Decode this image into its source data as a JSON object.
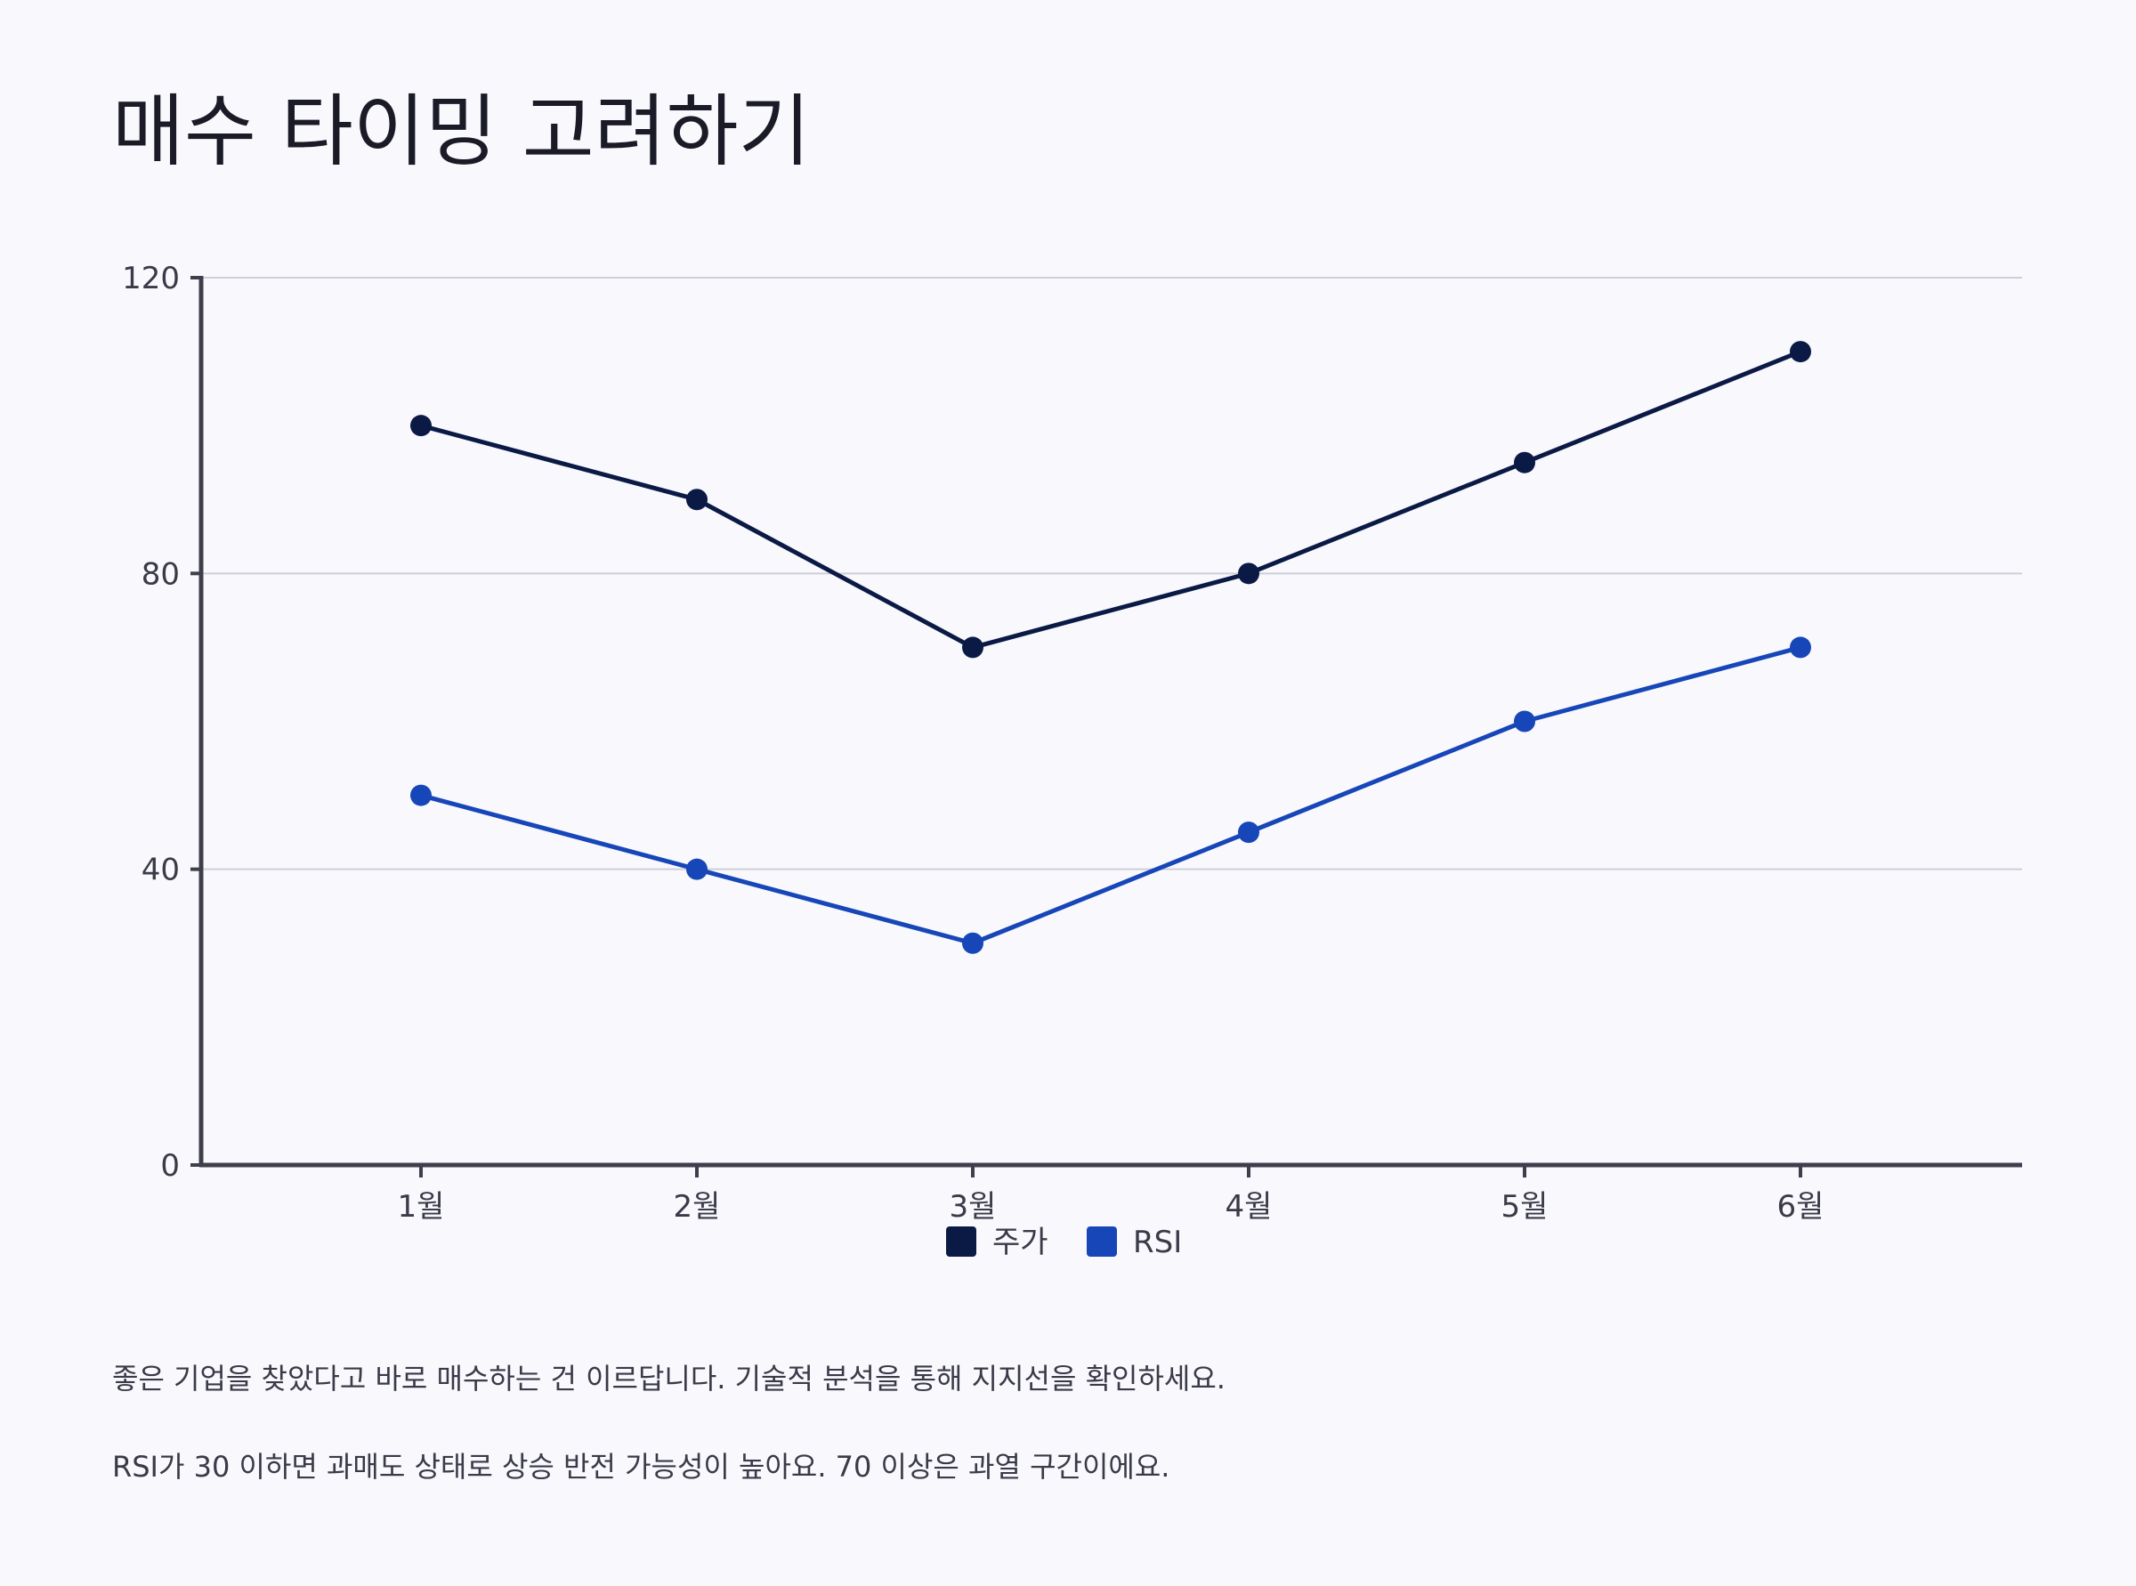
{
  "title": "매수 타이밍 고려하기",
  "notes": [
    "좋은 기업을 찾았다고 바로 매수하는 건 이르답니다. 기술적 분석을 통해 지지선을 확인하세요.",
    "RSI가 30 이하면 과매도 상태로 상승 반전 가능성이 높아요. 70 이상은 과열 구간이에요."
  ],
  "chart_data": {
    "type": "line",
    "categories": [
      "1월",
      "2월",
      "3월",
      "4월",
      "5월",
      "6월"
    ],
    "series": [
      {
        "name": "주가",
        "color": "#0b1a45",
        "values": [
          100,
          90,
          70,
          80,
          95,
          110
        ]
      },
      {
        "name": "RSI",
        "color": "#1746b8",
        "values": [
          50,
          40,
          30,
          45,
          60,
          70
        ]
      }
    ],
    "ylim": [
      0,
      120
    ],
    "yticks": [
      0,
      40,
      80,
      120
    ],
    "ytick_labels": [
      "0",
      "40",
      "80",
      "120"
    ],
    "grid": true,
    "legend_position": "bottom-center",
    "xlabel": "",
    "ylabel": ""
  }
}
